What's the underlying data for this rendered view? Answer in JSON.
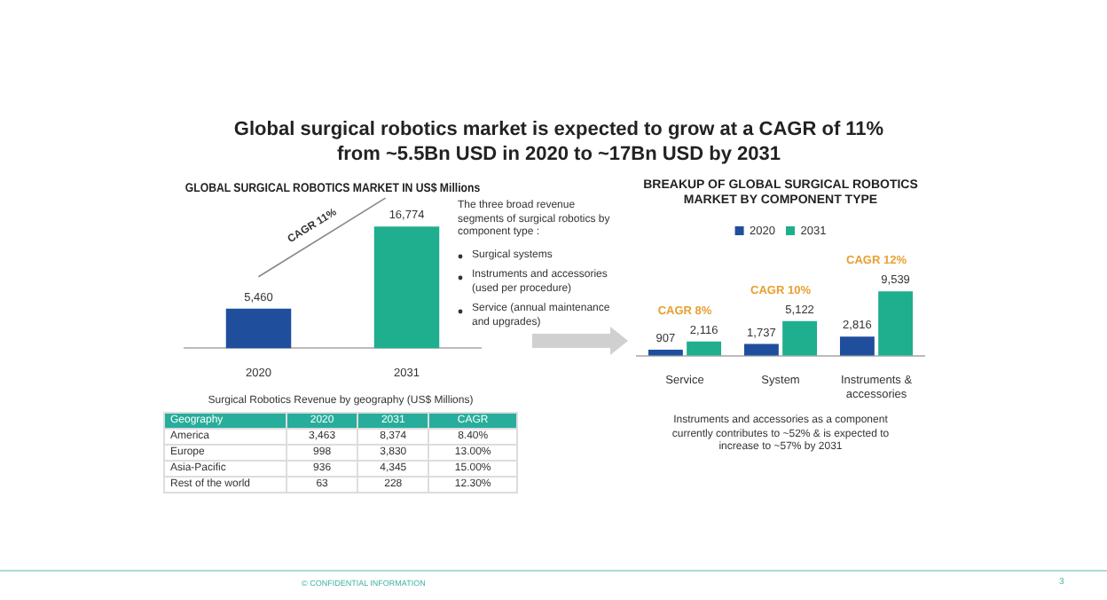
{
  "chart_data": [
    {
      "type": "other",
      "title": "Global surgical robotics market is expected to grow at a CAGR of 11% from ~5.5Bn USD in 2020 to ~17Bn USD by 2031",
      "annotations": [
        "© CONFIDENTIAL INFORMATION",
        "3"
      ]
    },
    {
      "type": "bar",
      "title": "GLOBAL SURGICAL ROBOTICS MARKET IN US$ Millions",
      "categories": [
        "2020",
        "2031"
      ],
      "values": [
        5460,
        16774
      ],
      "value_labels": [
        "5,460",
        "16,774"
      ],
      "colors": [
        "#1f4e9c",
        "#1fae8e"
      ],
      "annotations": [
        "CAGR 11%"
      ]
    },
    {
      "type": "other",
      "annotations": [
        "The three broad revenue segments of surgical robotics by component type :",
        "Surgical systems",
        "Instruments and accessories (used per procedure)",
        "Service (annual maintenance and upgrades)"
      ]
    },
    {
      "type": "bar",
      "title": "BREAKUP OF GLOBAL SURGICAL ROBOTICS MARKET BY COMPONENT TYPE",
      "categories": [
        "Service",
        "System",
        "Instruments & accessories"
      ],
      "legend": "top",
      "series": [
        {
          "name": "2020",
          "color": "#1f4e9c",
          "values": [
            907,
            1737,
            2816
          ],
          "value_labels": [
            "907",
            "1,737",
            "2,816"
          ]
        },
        {
          "name": "2031",
          "color": "#1fae8e",
          "values": [
            2116,
            5122,
            9539
          ],
          "value_labels": [
            "2,116",
            "5,122",
            "9,539"
          ]
        }
      ],
      "annotations": [
        "CAGR 8%",
        "CAGR 10%",
        "CAGR 12%",
        "Instruments and accessories as a component currently contributes to ~52% & is expected to increase to ~57% by 2031"
      ]
    },
    {
      "type": "other",
      "title": "Surgical Robotics Revenue by geography (US$ Millions)",
      "annotations": [
        "Geography",
        "2020",
        "2031",
        "CAGR",
        "America",
        "3,463",
        "8,374",
        "8.40%",
        "Europe",
        "998",
        "3,830",
        "13.00%",
        "Asia-Pacific",
        "936",
        "4,345",
        "15.00%",
        "Rest of the world",
        "63",
        "228",
        "12.30%"
      ]
    }
  ]
}
